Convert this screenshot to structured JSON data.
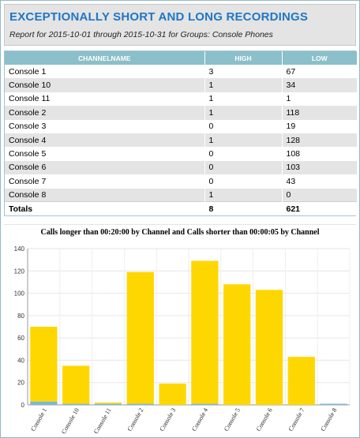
{
  "report": {
    "title": "EXCEPTIONALLY SHORT AND LONG RECORDINGS",
    "subtitle": "Report for 2015-10-01 through 2015-10-31 for Groups: Console Phones"
  },
  "table": {
    "headers": [
      "CHANNELNAME",
      "HIGH",
      "LOW"
    ],
    "rows": [
      {
        "channel": "Console 1",
        "high": "3",
        "low": "67"
      },
      {
        "channel": "Console 10",
        "high": "1",
        "low": "34"
      },
      {
        "channel": "Console 11",
        "high": "1",
        "low": "1"
      },
      {
        "channel": "Console 2",
        "high": "1",
        "low": "118"
      },
      {
        "channel": "Console 3",
        "high": "0",
        "low": "19"
      },
      {
        "channel": "Console 4",
        "high": "1",
        "low": "128"
      },
      {
        "channel": "Console 5",
        "high": "0",
        "low": "108"
      },
      {
        "channel": "Console 6",
        "high": "0",
        "low": "103"
      },
      {
        "channel": "Console 7",
        "high": "0",
        "low": "43"
      },
      {
        "channel": "Console 8",
        "high": "1",
        "low": "0"
      }
    ],
    "totals": {
      "label": "Totals",
      "high": "8",
      "low": "621"
    }
  },
  "chart_data": {
    "type": "bar",
    "title": "Calls longer than 00:20:00 by Channel and Calls shorter than 00:00:05 by Channel",
    "categories": [
      "Console 1",
      "Console 10",
      "Console 11",
      "Console 2",
      "Console 3",
      "Console 4",
      "Console 5",
      "Console 6",
      "Console 7",
      "Console 8"
    ],
    "series": [
      {
        "values": [
          3,
          1,
          1,
          1,
          0,
          1,
          0,
          0,
          0,
          1
        ],
        "color": "#7ab8d8"
      },
      {
        "values": [
          67,
          34,
          1,
          118,
          19,
          128,
          108,
          103,
          43,
          0
        ],
        "color": "#ffd700"
      }
    ],
    "stacked": true,
    "ylim": [
      0,
      140
    ],
    "yticks": [
      0,
      20,
      40,
      60,
      80,
      100,
      120,
      140
    ],
    "grid": true
  }
}
